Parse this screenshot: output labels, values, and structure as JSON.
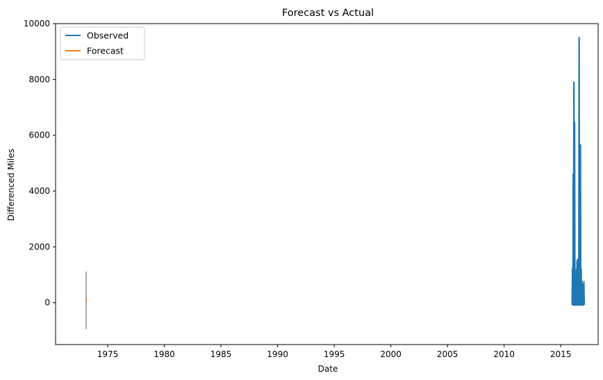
{
  "chart_data": {
    "type": "line",
    "title": "Forecast vs Actual",
    "xlabel": "Date",
    "ylabel": "Differenced Miles",
    "xlim": [
      1970.4,
      2018.3
    ],
    "ylim": [
      -1500,
      10000
    ],
    "x_ticks": [
      1975,
      1980,
      1985,
      1990,
      1995,
      2000,
      2005,
      2010,
      2015
    ],
    "x_tick_labels": [
      "1975",
      "1980",
      "1985",
      "1990",
      "1995",
      "2000",
      "2005",
      "2010",
      "2015"
    ],
    "y_ticks": [
      0,
      2000,
      4000,
      6000,
      8000,
      10000
    ],
    "y_tick_labels": [
      "0",
      "2000",
      "4000",
      "6000",
      "8000",
      "10000"
    ],
    "grid": false,
    "legend_position": "top-left",
    "series": [
      {
        "name": "Observed",
        "color": "#1f77b4",
        "x": [
          2016.0,
          2016.04,
          2016.08,
          2016.1,
          2016.13,
          2016.16,
          2016.19,
          2016.22,
          2016.25,
          2016.27,
          2016.3,
          2016.33,
          2016.36,
          2016.39,
          2016.42,
          2016.44,
          2016.47,
          2016.5,
          2016.53,
          2016.56,
          2016.59,
          2016.62,
          2016.65,
          2016.68,
          2016.71,
          2016.74,
          2016.77,
          2016.8,
          2016.83,
          2016.86,
          2016.89,
          2016.92,
          2016.95,
          2016.98,
          2017.01,
          2017.04,
          2017.07
        ],
        "y": [
          -80,
          1250,
          -80,
          4600,
          -80,
          7900,
          -80,
          6450,
          -80,
          1000,
          -80,
          950,
          -80,
          1200,
          -80,
          1500,
          -80,
          1550,
          -80,
          1400,
          -80,
          9500,
          -80,
          2600,
          -80,
          5650,
          -80,
          1200,
          -80,
          780,
          -80,
          650,
          -80,
          400,
          -80,
          750,
          -80
        ]
      },
      {
        "name": "Forecast",
        "color": "#ff7f0e",
        "x": [
          1973.05,
          1973.15
        ],
        "y": [
          110,
          90
        ]
      }
    ],
    "interval": {
      "color": "#aaaaaa",
      "x": [
        1973.1
      ],
      "lower": [
        -950
      ],
      "upper": [
        1120
      ]
    }
  }
}
